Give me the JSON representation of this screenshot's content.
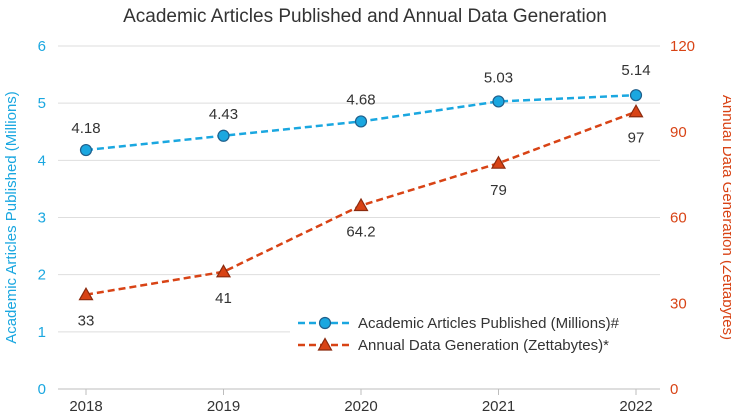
{
  "chart_data": {
    "type": "line",
    "title": "Academic Articles Published and Annual Data Generation",
    "categories": [
      "2018",
      "2019",
      "2020",
      "2021",
      "2022"
    ],
    "y_left": {
      "label": "Academic Articles Published (Millions)",
      "range": [
        0,
        6
      ],
      "ticks": [
        "0",
        "1",
        "2",
        "3",
        "4",
        "5",
        "6"
      ],
      "color": "#1aa7e0"
    },
    "y_right": {
      "label": "Annual Data Generation (Zettabytes)",
      "range": [
        0,
        120
      ],
      "ticks": [
        "0",
        "30",
        "60",
        "90",
        "120"
      ],
      "color": "#d84315"
    },
    "series": [
      {
        "name": "Academic Articles Published (Millions)#",
        "axis": "left",
        "values": [
          4.18,
          4.43,
          4.68,
          5.03,
          5.14
        ],
        "labels": [
          "4.18",
          "4.43",
          "4.68",
          "5.03",
          "5.14"
        ],
        "line_color": "#1aa7e0",
        "marker": "circle",
        "marker_fill": "#1aa7e0",
        "marker_stroke": "#1f5f8b"
      },
      {
        "name": "Annual Data Generation (Zettabytes)*",
        "axis": "right",
        "values": [
          33,
          41,
          64.2,
          79,
          97
        ],
        "labels": [
          "33",
          "41",
          "64.2",
          "79",
          "97"
        ],
        "line_color": "#d84315",
        "marker": "triangle",
        "marker_fill": "#d84315",
        "marker_stroke": "#8b2a0e"
      }
    ],
    "legend_position": "bottom-right",
    "grid": true
  }
}
